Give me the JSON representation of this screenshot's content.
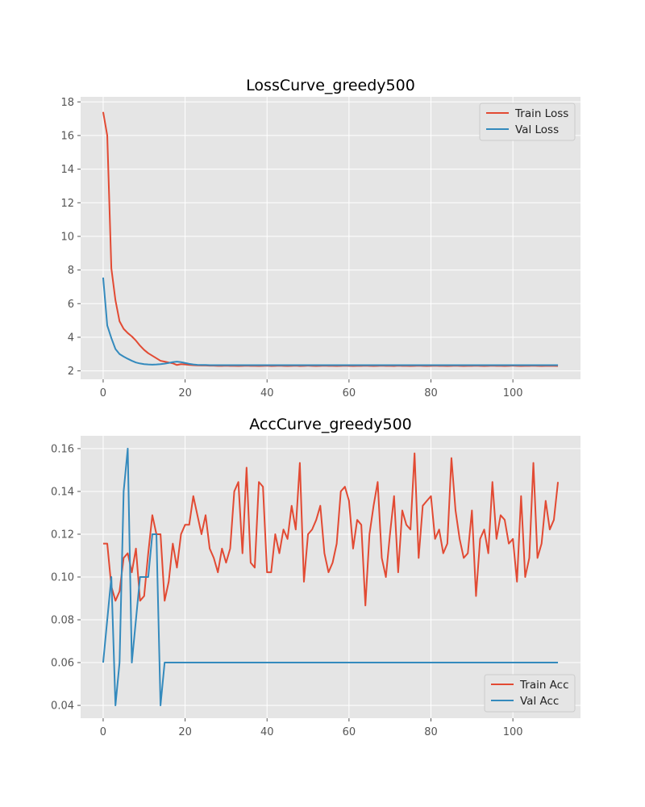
{
  "chart_data": [
    {
      "type": "line",
      "title": "LossCurve_greedy500",
      "xlabel": "",
      "ylabel": "",
      "xlim": [
        -5.5,
        116.5
      ],
      "ylim": [
        1.5,
        18.3
      ],
      "xticks": [
        0,
        20,
        40,
        60,
        80,
        100
      ],
      "yticks": [
        2,
        4,
        6,
        8,
        10,
        12,
        14,
        16,
        18
      ],
      "grid": true,
      "legend_position": "top-right",
      "series": [
        {
          "name": "Train Loss",
          "color": "#E24A33",
          "values": [
            17.4,
            16.0,
            8.1,
            6.2,
            4.95,
            4.5,
            4.25,
            4.05,
            3.8,
            3.5,
            3.25,
            3.05,
            2.9,
            2.75,
            2.6,
            2.55,
            2.5,
            2.45,
            2.35,
            2.4,
            2.38,
            2.36,
            2.34,
            2.33,
            2.32,
            2.32,
            2.31,
            2.31,
            2.3,
            2.3,
            2.31,
            2.3,
            2.3,
            2.29,
            2.3,
            2.31,
            2.3,
            2.3,
            2.29,
            2.3,
            2.31,
            2.29,
            2.3,
            2.31,
            2.3,
            2.29,
            2.3,
            2.31,
            2.29,
            2.3,
            2.31,
            2.3,
            2.29,
            2.3,
            2.31,
            2.3,
            2.3,
            2.29,
            2.3,
            2.31,
            2.3,
            2.29,
            2.3,
            2.3,
            2.31,
            2.3,
            2.29,
            2.3,
            2.31,
            2.3,
            2.3,
            2.29,
            2.31,
            2.3,
            2.3,
            2.29,
            2.3,
            2.31,
            2.3,
            2.29,
            2.3,
            2.31,
            2.3,
            2.3,
            2.29,
            2.3,
            2.31,
            2.3,
            2.29,
            2.3,
            2.3,
            2.31,
            2.3,
            2.29,
            2.3,
            2.31,
            2.3,
            2.3,
            2.29,
            2.3,
            2.31,
            2.3,
            2.29,
            2.3,
            2.3,
            2.31,
            2.3,
            2.29,
            2.3,
            2.3,
            2.3,
            2.29
          ]
        },
        {
          "name": "Val Loss",
          "color": "#348ABD",
          "values": [
            7.55,
            4.7,
            3.95,
            3.3,
            3.0,
            2.85,
            2.72,
            2.6,
            2.5,
            2.44,
            2.4,
            2.38,
            2.37,
            2.38,
            2.4,
            2.43,
            2.47,
            2.52,
            2.55,
            2.52,
            2.47,
            2.42,
            2.38,
            2.36,
            2.35,
            2.35,
            2.34,
            2.34,
            2.34,
            2.34,
            2.34,
            2.34,
            2.34,
            2.34,
            2.34,
            2.34,
            2.34,
            2.34,
            2.34,
            2.34,
            2.34,
            2.34,
            2.34,
            2.34,
            2.34,
            2.34,
            2.34,
            2.34,
            2.34,
            2.34,
            2.34,
            2.34,
            2.34,
            2.34,
            2.34,
            2.34,
            2.34,
            2.34,
            2.34,
            2.34,
            2.34,
            2.34,
            2.34,
            2.34,
            2.34,
            2.34,
            2.34,
            2.34,
            2.34,
            2.34,
            2.34,
            2.34,
            2.34,
            2.34,
            2.34,
            2.34,
            2.34,
            2.34,
            2.34,
            2.34,
            2.34,
            2.34,
            2.34,
            2.34,
            2.34,
            2.34,
            2.34,
            2.34,
            2.34,
            2.34,
            2.34,
            2.34,
            2.34,
            2.34,
            2.34,
            2.34,
            2.34,
            2.34,
            2.34,
            2.34,
            2.34,
            2.34,
            2.34,
            2.34,
            2.34,
            2.34,
            2.34,
            2.34,
            2.34,
            2.34,
            2.34,
            2.34
          ]
        }
      ]
    },
    {
      "type": "line",
      "title": "AccCurve_greedy500",
      "xlabel": "",
      "ylabel": "",
      "xlim": [
        -5.5,
        116.5
      ],
      "ylim": [
        0.034,
        0.166
      ],
      "xticks": [
        0,
        20,
        40,
        60,
        80,
        100
      ],
      "yticks": [
        0.04,
        0.06,
        0.08,
        0.1,
        0.12,
        0.14,
        0.16
      ],
      "ytick_labels": [
        "0.04",
        "0.06",
        "0.08",
        "0.10",
        "0.12",
        "0.14",
        "0.16"
      ],
      "grid": true,
      "legend_position": "bottom-right",
      "series": [
        {
          "name": "Train Acc",
          "color": "#E24A33",
          "values": [
            0.1156,
            0.1156,
            0.0956,
            0.0889,
            0.0933,
            0.1089,
            0.1111,
            0.1022,
            0.1133,
            0.0889,
            0.0911,
            0.1111,
            0.1289,
            0.12,
            0.12,
            0.0889,
            0.0978,
            0.1156,
            0.1044,
            0.12,
            0.1244,
            0.1244,
            0.1378,
            0.1289,
            0.12,
            0.1289,
            0.1133,
            0.1089,
            0.1022,
            0.1133,
            0.1067,
            0.1133,
            0.14,
            0.1444,
            0.1111,
            0.1511,
            0.1067,
            0.1044,
            0.1444,
            0.1422,
            0.1022,
            0.1022,
            0.12,
            0.1111,
            0.1222,
            0.1178,
            0.1333,
            0.1222,
            0.1533,
            0.0978,
            0.12,
            0.1222,
            0.1267,
            0.1333,
            0.1111,
            0.1022,
            0.1067,
            0.1156,
            0.14,
            0.1422,
            0.1356,
            0.1133,
            0.1267,
            0.1244,
            0.0867,
            0.12,
            0.1333,
            0.1444,
            0.1089,
            0.1,
            0.12,
            0.1378,
            0.1022,
            0.1311,
            0.1244,
            0.1222,
            0.1578,
            0.1089,
            0.1333,
            0.1356,
            0.1378,
            0.1178,
            0.1222,
            0.1111,
            0.1156,
            0.1556,
            0.1311,
            0.1178,
            0.1089,
            0.1111,
            0.1311,
            0.0911,
            0.1178,
            0.1222,
            0.1111,
            0.1444,
            0.1178,
            0.1289,
            0.1267,
            0.1156,
            0.1178,
            0.0978,
            0.1378,
            0.1,
            0.1089,
            0.1533,
            0.1089,
            0.1156,
            0.1356,
            0.1222,
            0.1267,
            0.1444
          ]
        },
        {
          "name": "Val Acc",
          "color": "#348ABD",
          "values": [
            0.06,
            0.08,
            0.1,
            0.04,
            0.06,
            0.14,
            0.16,
            0.06,
            0.08,
            0.1,
            0.1,
            0.1,
            0.12,
            0.12,
            0.04,
            0.06,
            0.06,
            0.06,
            0.06,
            0.06,
            0.06,
            0.06,
            0.06,
            0.06,
            0.06,
            0.06,
            0.06,
            0.06,
            0.06,
            0.06,
            0.06,
            0.06,
            0.06,
            0.06,
            0.06,
            0.06,
            0.06,
            0.06,
            0.06,
            0.06,
            0.06,
            0.06,
            0.06,
            0.06,
            0.06,
            0.06,
            0.06,
            0.06,
            0.06,
            0.06,
            0.06,
            0.06,
            0.06,
            0.06,
            0.06,
            0.06,
            0.06,
            0.06,
            0.06,
            0.06,
            0.06,
            0.06,
            0.06,
            0.06,
            0.06,
            0.06,
            0.06,
            0.06,
            0.06,
            0.06,
            0.06,
            0.06,
            0.06,
            0.06,
            0.06,
            0.06,
            0.06,
            0.06,
            0.06,
            0.06,
            0.06,
            0.06,
            0.06,
            0.06,
            0.06,
            0.06,
            0.06,
            0.06,
            0.06,
            0.06,
            0.06,
            0.06,
            0.06,
            0.06,
            0.06,
            0.06,
            0.06,
            0.06,
            0.06,
            0.06,
            0.06,
            0.06,
            0.06,
            0.06,
            0.06,
            0.06,
            0.06,
            0.06,
            0.06,
            0.06,
            0.06,
            0.06
          ]
        }
      ]
    }
  ]
}
